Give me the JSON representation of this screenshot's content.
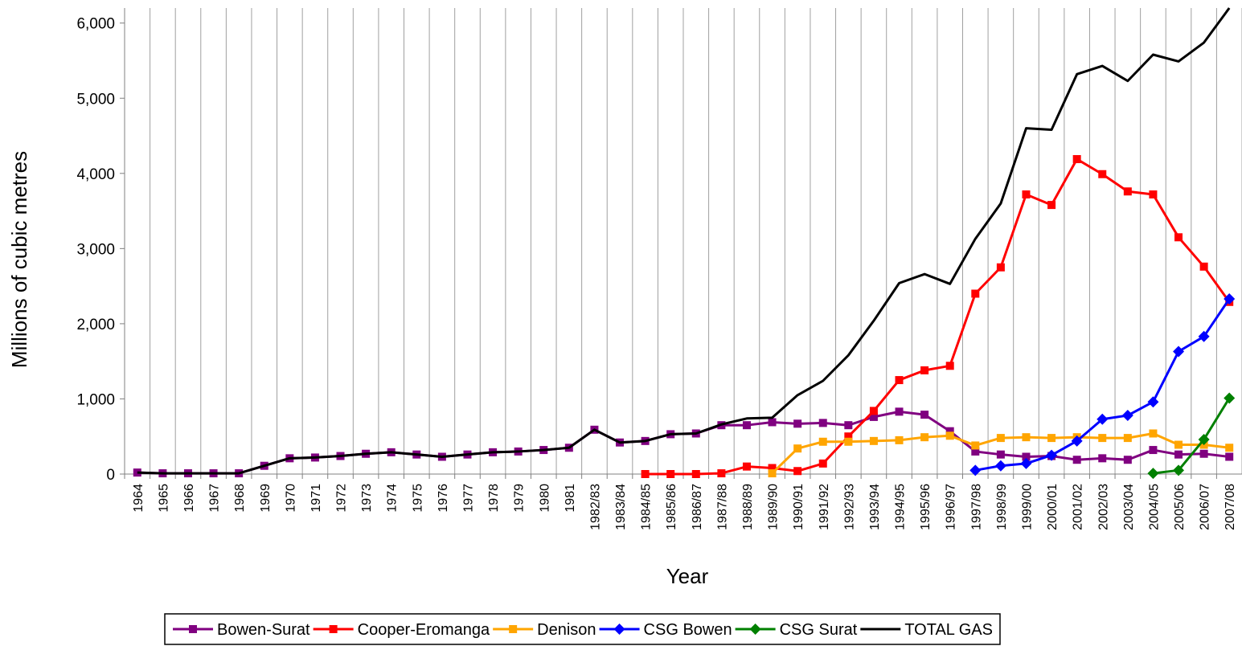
{
  "chart_data": {
    "type": "line",
    "x_label": "Year",
    "y_label": "Millions of cubic metres",
    "categories": [
      "1964",
      "1965",
      "1966",
      "1967",
      "1968",
      "1969",
      "1970",
      "1971",
      "1972",
      "1973",
      "1974",
      "1975",
      "1976",
      "1977",
      "1978",
      "1979",
      "1980",
      "1981",
      "1982/83",
      "1983/84",
      "1984/85",
      "1985/86",
      "1986/87",
      "1987/88",
      "1988/89",
      "1989/90",
      "1990/91",
      "1991/92",
      "1992/93",
      "1993/94",
      "1994/95",
      "1995/96",
      "1996/97",
      "1997/98",
      "1998/99",
      "1999/00",
      "2000/01",
      "2001/02",
      "2002/03",
      "2003/04",
      "2004/05",
      "2005/06",
      "2006/07",
      "2007/08"
    ],
    "series": [
      {
        "name": "Bowen-Surat",
        "color": "#800080",
        "marker": "square",
        "values": [
          20,
          10,
          10,
          10,
          10,
          110,
          210,
          220,
          240,
          270,
          290,
          260,
          230,
          260,
          290,
          300,
          320,
          350,
          590,
          420,
          440,
          530,
          540,
          650,
          650,
          690,
          670,
          680,
          650,
          760,
          830,
          790,
          570,
          300,
          260,
          230,
          240,
          190,
          210,
          190,
          320,
          260,
          270,
          230
        ]
      },
      {
        "name": "Cooper-Eromanga",
        "color": "#ff0000",
        "marker": "square",
        "values": [
          null,
          null,
          null,
          null,
          null,
          null,
          null,
          null,
          null,
          null,
          null,
          null,
          null,
          null,
          null,
          null,
          null,
          null,
          null,
          null,
          0,
          0,
          0,
          10,
          100,
          80,
          40,
          140,
          500,
          840,
          1250,
          1380,
          1440,
          2400,
          2750,
          3720,
          3580,
          4190,
          3990,
          3760,
          3720,
          3150,
          2760,
          2290
        ]
      },
      {
        "name": "Denison",
        "color": "#ffa500",
        "marker": "square",
        "values": [
          null,
          null,
          null,
          null,
          null,
          null,
          null,
          null,
          null,
          null,
          null,
          null,
          null,
          null,
          null,
          null,
          null,
          null,
          null,
          null,
          null,
          null,
          null,
          null,
          null,
          10,
          340,
          430,
          430,
          440,
          450,
          490,
          510,
          380,
          480,
          490,
          480,
          490,
          480,
          480,
          540,
          390,
          390,
          350
        ]
      },
      {
        "name": "CSG Bowen",
        "color": "#0000ff",
        "marker": "diamond",
        "values": [
          null,
          null,
          null,
          null,
          null,
          null,
          null,
          null,
          null,
          null,
          null,
          null,
          null,
          null,
          null,
          null,
          null,
          null,
          null,
          null,
          null,
          null,
          null,
          null,
          null,
          null,
          null,
          null,
          null,
          null,
          null,
          null,
          null,
          50,
          110,
          140,
          250,
          440,
          730,
          780,
          960,
          1630,
          1830,
          2330
        ]
      },
      {
        "name": "CSG Surat",
        "color": "#008000",
        "marker": "diamond",
        "values": [
          null,
          null,
          null,
          null,
          null,
          null,
          null,
          null,
          null,
          null,
          null,
          null,
          null,
          null,
          null,
          null,
          null,
          null,
          null,
          null,
          null,
          null,
          null,
          null,
          null,
          null,
          null,
          null,
          null,
          null,
          null,
          null,
          null,
          null,
          null,
          null,
          null,
          null,
          null,
          null,
          10,
          50,
          460,
          1010
        ]
      },
      {
        "name": "TOTAL GAS",
        "color": "#000000",
        "values": [
          20,
          10,
          10,
          10,
          10,
          110,
          210,
          220,
          240,
          270,
          290,
          260,
          230,
          260,
          290,
          300,
          320,
          350,
          590,
          420,
          440,
          530,
          540,
          660,
          740,
          750,
          1050,
          1240,
          1580,
          2040,
          2540,
          2660,
          2530,
          3130,
          3600,
          4600,
          4580,
          5320,
          5430,
          5230,
          5580,
          5490,
          5740,
          6200
        ]
      }
    ],
    "ylim": [
      0,
      6200
    ],
    "yticks": [
      0,
      {
        "value": 1000,
        "label": "1,000"
      },
      {
        "value": 2000,
        "label": "2,000"
      },
      {
        "value": 3000,
        "label": "3,000"
      },
      {
        "value": 4000,
        "label": "4,000"
      },
      {
        "value": 5000,
        "label": "5,000"
      },
      {
        "value": 6000,
        "label": "6,000"
      }
    ],
    "grid": "x",
    "legend": "bottom"
  }
}
